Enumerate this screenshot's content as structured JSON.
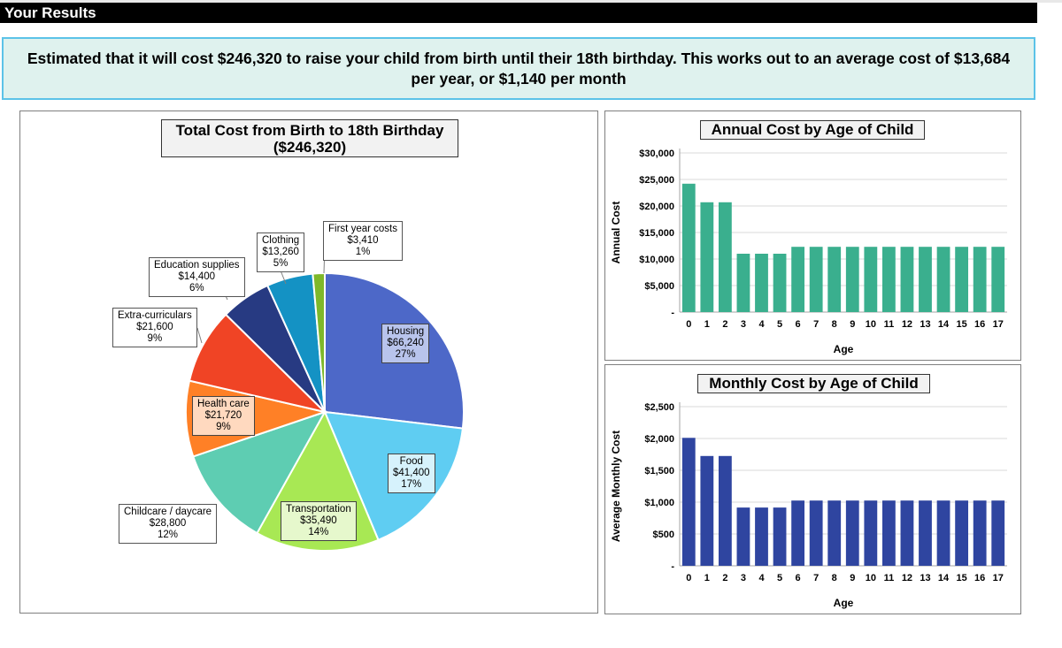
{
  "header": {
    "title": "Your Results"
  },
  "summary": {
    "text": "Estimated that it will cost $246,320 to raise your child from birth until their 18th birthday. This works out to an average cost of $13,684 per year, or $1,140 per month"
  },
  "chart_data": [
    {
      "type": "pie",
      "title": "Total Cost from Birth to 18th Birthday",
      "subtitle": "($246,320)",
      "slices": [
        {
          "label": "Housing",
          "value": 66240,
          "value_label": "$66,240",
          "percent_label": "27%",
          "color": "#4d68c8",
          "label_bg": "#b8c4ec"
        },
        {
          "label": "Food",
          "value": 41400,
          "value_label": "$41,400",
          "percent_label": "17%",
          "color": "#5fcdf2",
          "label_bg": "#d6f2fc"
        },
        {
          "label": "Transportation",
          "value": 35490,
          "value_label": "$35,490",
          "percent_label": "14%",
          "color": "#a8e854",
          "label_bg": "#e6f8cc"
        },
        {
          "label": "Childcare / daycare",
          "value": 28800,
          "value_label": "$28,800",
          "percent_label": "12%",
          "color": "#5ecdb2",
          "label_bg": "#ffffff"
        },
        {
          "label": "Health care",
          "value": 21720,
          "value_label": "$21,720",
          "percent_label": "9%",
          "color": "#ff8026",
          "label_bg": "#ffd9bf"
        },
        {
          "label": "Extra-curriculars",
          "value": 21600,
          "value_label": "$21,600",
          "percent_label": "9%",
          "color": "#f04425",
          "label_bg": "#ffffff"
        },
        {
          "label": "Education supplies",
          "value": 14400,
          "value_label": "$14,400",
          "percent_label": "6%",
          "color": "#273a82",
          "label_bg": "#ffffff"
        },
        {
          "label": "Clothing",
          "value": 13260,
          "value_label": "$13,260",
          "percent_label": "5%",
          "color": "#1492c4",
          "label_bg": "#ffffff"
        },
        {
          "label": "First year costs",
          "value": 3410,
          "value_label": "$3,410",
          "percent_label": "1%",
          "color": "#7eb82a",
          "label_bg": "#ffffff"
        }
      ]
    },
    {
      "type": "bar",
      "title": "Annual Cost by Age of Child",
      "xlabel": "Age",
      "ylabel": "Annual Cost",
      "categories": [
        "0",
        "1",
        "2",
        "3",
        "4",
        "5",
        "6",
        "7",
        "8",
        "9",
        "10",
        "11",
        "12",
        "13",
        "14",
        "15",
        "16",
        "17"
      ],
      "values": [
        24200,
        20700,
        20700,
        11000,
        11000,
        11000,
        12300,
        12300,
        12300,
        12300,
        12300,
        12300,
        12300,
        12300,
        12300,
        12300,
        12300,
        12300
      ],
      "ylim": [
        0,
        30000
      ],
      "yticks": [
        0,
        5000,
        10000,
        15000,
        20000,
        25000,
        30000
      ],
      "ytick_labels": [
        "-",
        "$5,000",
        "$10,000",
        "$15,000",
        "$20,000",
        "$25,000",
        "$30,000"
      ],
      "grid": true,
      "color": "#3aaf8e"
    },
    {
      "type": "bar",
      "title": "Monthly Cost by Age of Child",
      "xlabel": "Age",
      "ylabel": "Average Monthly Cost",
      "categories": [
        "0",
        "1",
        "2",
        "3",
        "4",
        "5",
        "6",
        "7",
        "8",
        "9",
        "10",
        "11",
        "12",
        "13",
        "14",
        "15",
        "16",
        "17"
      ],
      "values": [
        2010,
        1725,
        1725,
        915,
        915,
        915,
        1025,
        1025,
        1025,
        1025,
        1025,
        1025,
        1025,
        1025,
        1025,
        1025,
        1025,
        1025
      ],
      "ylim": [
        0,
        2500
      ],
      "yticks": [
        0,
        500,
        1000,
        1500,
        2000,
        2500
      ],
      "ytick_labels": [
        "-",
        "$500",
        "$1,000",
        "$1,500",
        "$2,000",
        "$2,500"
      ],
      "grid": true,
      "color": "#2f45a0"
    }
  ]
}
